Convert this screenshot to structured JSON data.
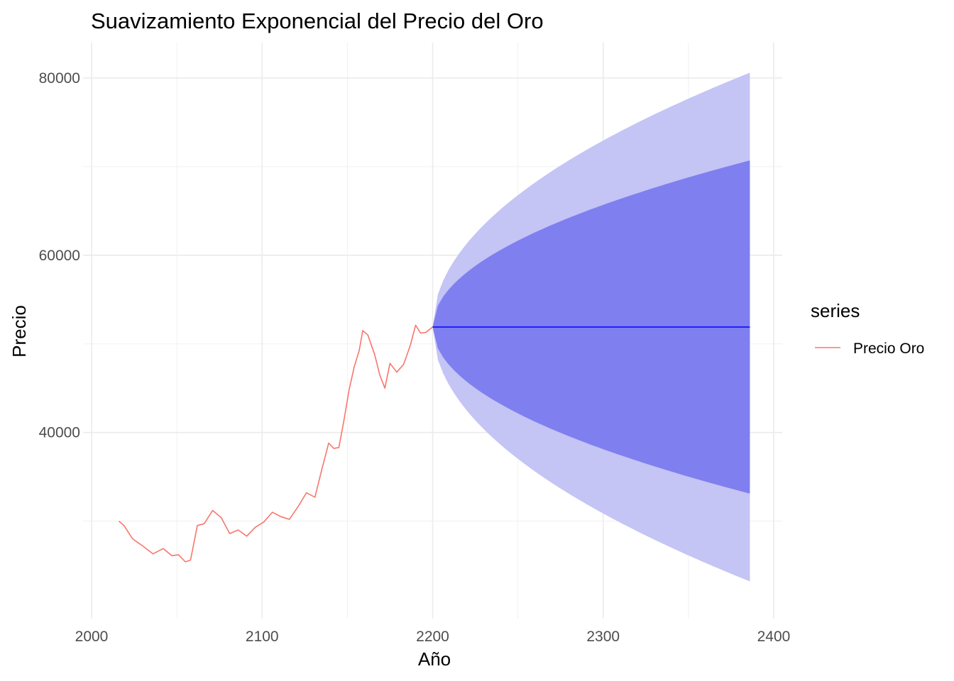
{
  "chart_data": {
    "type": "line",
    "title": "Suavizamiento Exponencial del Precio del Oro",
    "xlabel": "Año",
    "ylabel": "Precio",
    "xlim": [
      1995,
      2405
    ],
    "ylim": [
      19000,
      84000
    ],
    "x_ticks": [
      2000,
      2100,
      2200,
      2300,
      2400
    ],
    "x_tick_labels": [
      "2000",
      "2100",
      "2200",
      "2300",
      "2400"
    ],
    "y_ticks": [
      40000,
      60000,
      80000
    ],
    "y_tick_labels": [
      "40000",
      "60000",
      "80000"
    ],
    "x_minor_ticks": [
      2050,
      2150,
      2250,
      2350
    ],
    "y_minor_ticks": [
      30000,
      50000,
      70000
    ],
    "grid": true,
    "legend": {
      "title": "series",
      "placement": "right"
    },
    "series": [
      {
        "name": "Precio Oro",
        "color": "#f8766d",
        "x": [
          2016,
          2019,
          2024,
          2030,
          2036,
          2042,
          2047,
          2051,
          2055,
          2058,
          2062,
          2066,
          2071,
          2076,
          2081,
          2086,
          2091,
          2096,
          2101,
          2106,
          2111,
          2116,
          2121,
          2126,
          2131,
          2135,
          2139,
          2142,
          2145,
          2148,
          2151,
          2154,
          2157,
          2159,
          2162,
          2166,
          2169,
          2172,
          2175,
          2179,
          2183,
          2187,
          2190,
          2193,
          2196,
          2200
        ],
        "y": [
          30000,
          29500,
          28000,
          27200,
          26300,
          26900,
          26100,
          26200,
          25400,
          25600,
          29500,
          29700,
          31200,
          30400,
          28600,
          29000,
          28300,
          29300,
          29900,
          31000,
          30500,
          30200,
          31600,
          33200,
          32700,
          35800,
          38800,
          38200,
          38300,
          41400,
          44800,
          47400,
          49300,
          51500,
          51000,
          48800,
          46500,
          45000,
          47800,
          46800,
          47700,
          49900,
          52100,
          51200,
          51300,
          51900
        ]
      },
      {
        "name": "",
        "color": "#0000ff",
        "x": [
          2200,
          2386
        ],
        "y": [
          51900,
          51900
        ]
      }
    ],
    "forecast_bands": [
      {
        "level": "80",
        "color": "#7f7fef",
        "x": [
          2200,
          2386
        ],
        "upper_end": 70700,
        "lower_end": 33100
      },
      {
        "level": "95",
        "color": "#c4c4f5",
        "x": [
          2200,
          2386
        ],
        "upper_end": 80600,
        "lower_end": 23200
      }
    ]
  }
}
